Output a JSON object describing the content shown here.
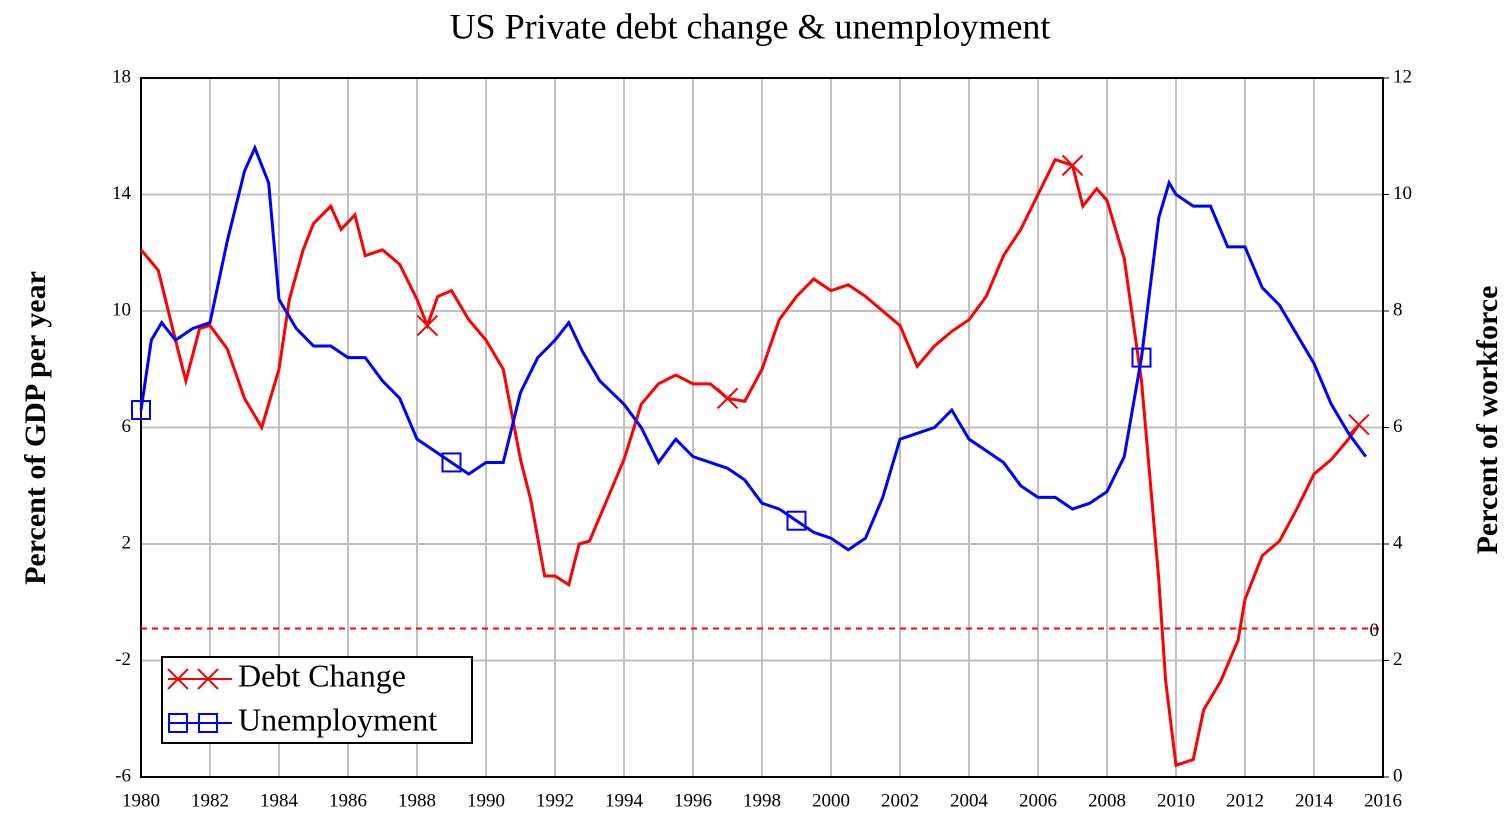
{
  "chart_data": {
    "type": "line",
    "title": "US Private debt change & unemployment",
    "ylabel": "Percent of GDP per year",
    "y2label": "Percent of workforce",
    "xlim": [
      1980,
      2016
    ],
    "xticks": [
      1980,
      1982,
      1984,
      1986,
      1988,
      1990,
      1992,
      1994,
      1996,
      1998,
      2000,
      2002,
      2004,
      2006,
      2008,
      2010,
      2012,
      2014,
      2016
    ],
    "ylim": [
      -6,
      18
    ],
    "yticks": [
      -6,
      -2,
      2,
      6,
      10,
      14,
      18
    ],
    "y2lim": [
      0,
      12
    ],
    "y2ticks": [
      0,
      2,
      4,
      6,
      8,
      10,
      12
    ],
    "grid": true,
    "legend": "lower left",
    "reference_line": {
      "value": -0.9,
      "label": "0",
      "color": "#ff0000"
    },
    "series": [
      {
        "name": "Debt Change",
        "color": "#ff0000",
        "marker": "x",
        "x": [
          1980.0,
          1980.5,
          1981.0,
          1981.3,
          1981.7,
          1982.0,
          1982.5,
          1983.0,
          1983.5,
          1984.0,
          1984.3,
          1984.7,
          1985.0,
          1985.5,
          1985.8,
          1986.2,
          1986.5,
          1987.0,
          1987.5,
          1988.0,
          1988.3,
          1988.6,
          1989.0,
          1989.5,
          1990.0,
          1990.5,
          1991.0,
          1991.3,
          1991.7,
          1992.0,
          1992.4,
          1992.7,
          1993.0,
          1993.5,
          1994.0,
          1994.5,
          1995.0,
          1995.5,
          1996.0,
          1996.5,
          1997.0,
          1997.5,
          1998.0,
          1998.5,
          1999.0,
          1999.5,
          2000.0,
          2000.5,
          2001.0,
          2001.5,
          2002.0,
          2002.5,
          2003.0,
          2003.5,
          2004.0,
          2004.5,
          2005.0,
          2005.5,
          2006.0,
          2006.5,
          2007.0,
          2007.3,
          2007.7,
          2008.0,
          2008.5,
          2009.0,
          2009.5,
          2009.7,
          2010.0,
          2010.5,
          2010.8,
          2011.3,
          2011.8,
          2012.0,
          2012.5,
          2013.0,
          2013.5,
          2014.0,
          2014.5,
          2015.0,
          2015.3
        ],
        "values": [
          12.1,
          11.4,
          9.0,
          7.6,
          9.4,
          9.5,
          8.7,
          7.0,
          6.0,
          8.0,
          10.4,
          12.1,
          13.0,
          13.6,
          12.8,
          13.3,
          11.9,
          12.1,
          11.6,
          10.4,
          9.5,
          10.5,
          10.7,
          9.7,
          9.0,
          8.0,
          4.9,
          3.5,
          0.9,
          0.9,
          0.6,
          2.0,
          2.1,
          3.5,
          4.9,
          6.8,
          7.5,
          7.8,
          7.5,
          7.5,
          7.0,
          6.9,
          8.0,
          9.7,
          10.5,
          11.1,
          10.7,
          10.9,
          10.5,
          10.0,
          9.5,
          8.1,
          8.8,
          9.3,
          9.7,
          10.5,
          11.9,
          12.8,
          14.0,
          15.2,
          15.0,
          13.6,
          14.2,
          13.8,
          11.8,
          7.6,
          0.8,
          -2.7,
          -5.6,
          -5.4,
          -3.7,
          -2.7,
          -1.3,
          0.1,
          1.6,
          2.1,
          3.2,
          4.4,
          4.9,
          5.6,
          6.1
        ]
      },
      {
        "name": "Unemployment",
        "color": "#0000ff",
        "marker": "square",
        "axis": "y2",
        "x": [
          1980.0,
          1980.3,
          1980.6,
          1981.0,
          1981.5,
          1982.0,
          1982.5,
          1983.0,
          1983.3,
          1983.7,
          1984.0,
          1984.5,
          1985.0,
          1985.5,
          1986.0,
          1986.5,
          1987.0,
          1987.5,
          1988.0,
          1988.5,
          1989.0,
          1989.5,
          1990.0,
          1990.5,
          1991.0,
          1991.5,
          1992.0,
          1992.4,
          1992.8,
          1993.3,
          1994.0,
          1994.5,
          1995.0,
          1995.5,
          1996.0,
          1996.5,
          1997.0,
          1997.5,
          1998.0,
          1998.5,
          1999.0,
          1999.5,
          2000.0,
          2000.5,
          2001.0,
          2001.5,
          2002.0,
          2002.5,
          2003.0,
          2003.5,
          2004.0,
          2004.5,
          2005.0,
          2005.5,
          2006.0,
          2006.5,
          2007.0,
          2007.5,
          2008.0,
          2008.5,
          2009.0,
          2009.5,
          2009.8,
          2010.0,
          2010.5,
          2011.0,
          2011.5,
          2012.0,
          2012.5,
          2013.0,
          2013.5,
          2014.0,
          2014.5,
          2015.0,
          2015.5
        ],
        "values": [
          6.3,
          7.5,
          7.8,
          7.5,
          7.7,
          7.8,
          9.2,
          10.4,
          10.8,
          10.2,
          8.2,
          7.7,
          7.4,
          7.4,
          7.2,
          7.2,
          6.8,
          6.5,
          5.8,
          5.6,
          5.4,
          5.2,
          5.4,
          5.4,
          6.6,
          7.2,
          7.5,
          7.8,
          7.3,
          6.8,
          6.4,
          6.0,
          5.4,
          5.8,
          5.5,
          5.4,
          5.3,
          5.1,
          4.7,
          4.6,
          4.4,
          4.2,
          4.1,
          3.9,
          4.1,
          4.8,
          5.8,
          5.9,
          6.0,
          6.3,
          5.8,
          5.6,
          5.4,
          5.0,
          4.8,
          4.8,
          4.6,
          4.7,
          4.9,
          5.5,
          7.2,
          9.6,
          10.2,
          10.0,
          9.8,
          9.8,
          9.1,
          9.1,
          8.4,
          8.1,
          7.6,
          7.1,
          6.4,
          5.9,
          5.5
        ]
      }
    ]
  }
}
